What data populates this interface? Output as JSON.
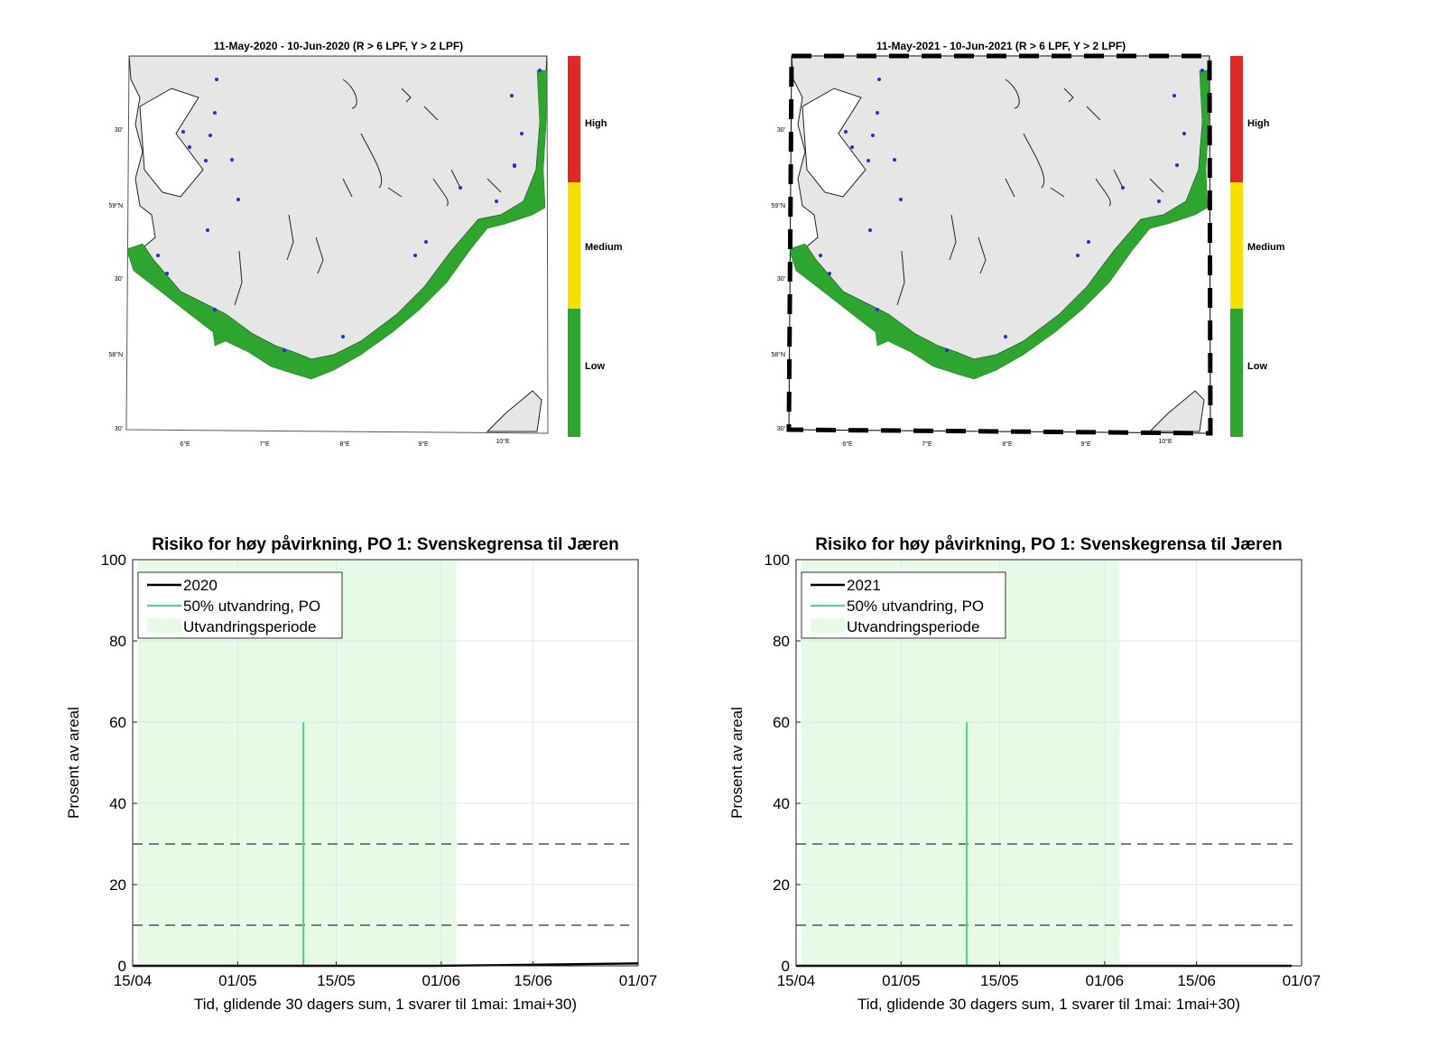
{
  "maps": [
    {
      "title": "11-May-2020  - 10-Jun-2020  (R > 6 LPF, Y > 2 LPF)",
      "lat_labels": [
        "30'",
        "59°N",
        "30'",
        "58°N",
        "30'"
      ],
      "lon_labels": [
        "6°E",
        "7°E",
        "8°E",
        "9°E",
        "10°E"
      ],
      "colorbar": [
        {
          "label": "High",
          "color": "#e02828"
        },
        {
          "label": "Medium",
          "color": "#f7e000"
        },
        {
          "label": "Low",
          "color": "#2ea52e"
        }
      ]
    },
    {
      "title": "11-May-2021  - 10-Jun-2021  (R > 6 LPF, Y > 2 LPF)",
      "lat_labels": [
        "30'",
        "59°N",
        "30'",
        "58°N",
        "30'"
      ],
      "lon_labels": [
        "6°E",
        "7°E",
        "8°E",
        "9°E",
        "10°E"
      ],
      "colorbar": [
        {
          "label": "High",
          "color": "#e02828"
        },
        {
          "label": "Medium",
          "color": "#f7e000"
        },
        {
          "label": "Low",
          "color": "#2ea52e"
        }
      ]
    }
  ],
  "colors": {
    "land": "#e6e6e6",
    "risk_zone": "#2ea52e",
    "site_dot": "#1f2fd6",
    "migration_shade": "#e6fbe6",
    "migration_line": "#5fd08a"
  },
  "chart_data": [
    {
      "type": "line",
      "title": "Risiko for høy påvirkning, PO 1: Svenskegrensa til Jæren",
      "xlabel": "Tid, glidende 30 dagers sum, 1 svarer til 1mai: 1mai+30)",
      "ylabel": "Prosent av areal",
      "xlim": [
        0,
        77
      ],
      "ylim": [
        0,
        100
      ],
      "xticks": [
        0,
        16,
        31,
        47,
        61,
        77
      ],
      "xtick_labels": [
        "15/04",
        "01/05",
        "15/05",
        "01/06",
        "15/06",
        "01/07"
      ],
      "yticks": [
        0,
        20,
        40,
        60,
        80,
        100
      ],
      "ytick_labels": [
        "0",
        "20",
        "40",
        "60",
        "80",
        100
      ],
      "series": [
        {
          "name": "2020",
          "x": [
            0,
            30,
            46,
            55,
            62,
            70,
            77
          ],
          "y": [
            0,
            0,
            0,
            0.15,
            0.3,
            0.45,
            0.6
          ]
        }
      ],
      "migration_line": {
        "label": "50% utvandring, PO",
        "x": 26,
        "height": 60
      },
      "migration_period": {
        "label": "Utvandringsperiode",
        "x_start": 0.8,
        "x_end": 49.3
      },
      "thresholds": [
        10,
        30
      ],
      "legend": "top-left"
    },
    {
      "type": "line",
      "title": "Risiko for høy påvirkning, PO 1: Svenskegrensa til Jæren",
      "xlabel": "Tid, glidende 30 dagers sum, 1 svarer til 1mai: 1mai+30)",
      "ylabel": "Prosent av areal",
      "xlim": [
        0,
        77
      ],
      "ylim": [
        0,
        100
      ],
      "xticks": [
        0,
        16,
        31,
        47,
        61,
        77
      ],
      "xtick_labels": [
        "15/04",
        "01/05",
        "15/05",
        "01/06",
        "15/06",
        "01/07"
      ],
      "yticks": [
        0,
        20,
        40,
        60,
        80,
        100
      ],
      "ytick_labels": [
        "0",
        "20",
        "40",
        "60",
        "80",
        "100"
      ],
      "series": [
        {
          "name": "2021",
          "x": [
            0,
            30,
            50,
            75.5
          ],
          "y": [
            0,
            0,
            0,
            0
          ]
        }
      ],
      "migration_line": {
        "label": "50% utvandring, PO",
        "x": 26,
        "height": 60
      },
      "migration_period": {
        "label": "Utvandringsperiode",
        "x_start": 0.8,
        "x_end": 49.3
      },
      "thresholds": [
        10,
        30
      ],
      "legend": "top-left"
    }
  ]
}
